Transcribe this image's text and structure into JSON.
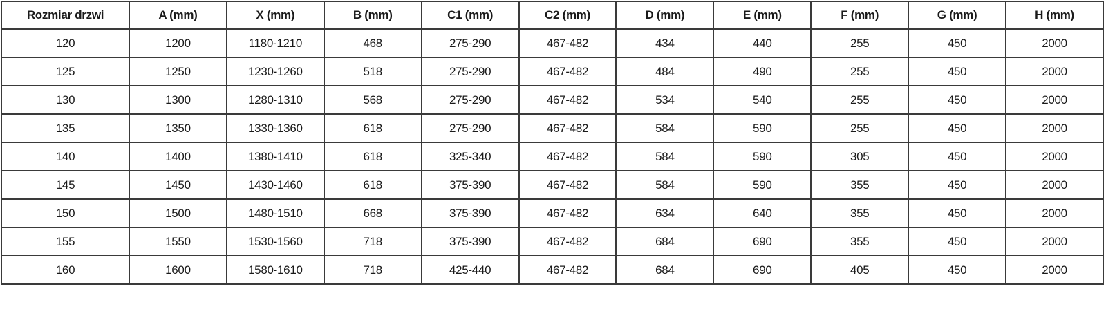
{
  "table": {
    "title": "door-dimensions-table",
    "columns": [
      "Rozmiar drzwi",
      "A (mm)",
      "X (mm)",
      "B (mm)",
      "C1 (mm)",
      "C2 (mm)",
      "D (mm)",
      "E (mm)",
      "F (mm)",
      "G (mm)",
      "H (mm)"
    ],
    "rows": [
      [
        "120",
        "1200",
        "1180-1210",
        "468",
        "275-290",
        "467-482",
        "434",
        "440",
        "255",
        "450",
        "2000"
      ],
      [
        "125",
        "1250",
        "1230-1260",
        "518",
        "275-290",
        "467-482",
        "484",
        "490",
        "255",
        "450",
        "2000"
      ],
      [
        "130",
        "1300",
        "1280-1310",
        "568",
        "275-290",
        "467-482",
        "534",
        "540",
        "255",
        "450",
        "2000"
      ],
      [
        "135",
        "1350",
        "1330-1360",
        "618",
        "275-290",
        "467-482",
        "584",
        "590",
        "255",
        "450",
        "2000"
      ],
      [
        "140",
        "1400",
        "1380-1410",
        "618",
        "325-340",
        "467-482",
        "584",
        "590",
        "305",
        "450",
        "2000"
      ],
      [
        "145",
        "1450",
        "1430-1460",
        "618",
        "375-390",
        "467-482",
        "584",
        "590",
        "355",
        "450",
        "2000"
      ],
      [
        "150",
        "1500",
        "1480-1510",
        "668",
        "375-390",
        "467-482",
        "634",
        "640",
        "355",
        "450",
        "2000"
      ],
      [
        "155",
        "1550",
        "1530-1560",
        "718",
        "375-390",
        "467-482",
        "684",
        "690",
        "355",
        "450",
        "2000"
      ],
      [
        "160",
        "1600",
        "1580-1610",
        "718",
        "425-440",
        "467-482",
        "684",
        "690",
        "405",
        "450",
        "2000"
      ]
    ],
    "colors": {
      "border": "#3a3a3a",
      "text": "#1a1a1a",
      "background": "#ffffff"
    }
  }
}
